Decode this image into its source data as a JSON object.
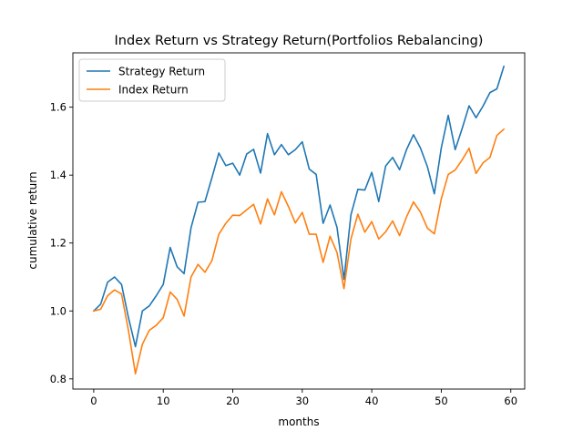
{
  "chart_data": {
    "type": "line",
    "title": "Index Return vs Strategy Return(Portfolios Rebalancing)",
    "xlabel": "months",
    "ylabel": "cumulative return",
    "xlim": [
      -3,
      62
    ],
    "ylim": [
      0.77,
      1.76
    ],
    "x_ticks": [
      0,
      10,
      20,
      30,
      40,
      50,
      60
    ],
    "y_ticks": [
      0.8,
      1.0,
      1.2,
      1.4,
      1.6
    ],
    "y_tick_labels": [
      "0.8",
      "1.0",
      "1.2",
      "1.4",
      "1.6"
    ],
    "grid": false,
    "legend_position": "top-left",
    "x": [
      0,
      1,
      2,
      3,
      4,
      5,
      6,
      7,
      8,
      9,
      10,
      11,
      12,
      13,
      14,
      15,
      16,
      17,
      18,
      19,
      20,
      21,
      22,
      23,
      24,
      25,
      26,
      27,
      28,
      29,
      30,
      31,
      32,
      33,
      34,
      35,
      36,
      37,
      38,
      39,
      40,
      41,
      42,
      43,
      44,
      45,
      46,
      47,
      48,
      49,
      50,
      51,
      52,
      53,
      54,
      55,
      56,
      57,
      58,
      59
    ],
    "series": [
      {
        "name": "Strategy Return",
        "color": "#1f77b4",
        "values": [
          1.0,
          1.02,
          1.085,
          1.1,
          1.078,
          0.98,
          0.895,
          1.0,
          1.015,
          1.045,
          1.078,
          1.187,
          1.13,
          1.11,
          1.245,
          1.32,
          1.322,
          1.392,
          1.465,
          1.428,
          1.435,
          1.4,
          1.462,
          1.476,
          1.406,
          1.522,
          1.46,
          1.49,
          1.46,
          1.475,
          1.498,
          1.418,
          1.402,
          1.258,
          1.312,
          1.246,
          1.093,
          1.283,
          1.358,
          1.356,
          1.408,
          1.322,
          1.427,
          1.452,
          1.416,
          1.475,
          1.519,
          1.48,
          1.425,
          1.345,
          1.48,
          1.576,
          1.475,
          1.537,
          1.604,
          1.569,
          1.603,
          1.643,
          1.654,
          1.72
        ]
      },
      {
        "name": "Index Return",
        "color": "#ff7f0e",
        "values": [
          1.0,
          1.005,
          1.045,
          1.062,
          1.05,
          0.942,
          0.815,
          0.902,
          0.943,
          0.958,
          0.98,
          1.056,
          1.034,
          0.985,
          1.1,
          1.137,
          1.114,
          1.148,
          1.226,
          1.258,
          1.282,
          1.281,
          1.298,
          1.314,
          1.256,
          1.33,
          1.283,
          1.351,
          1.308,
          1.259,
          1.29,
          1.226,
          1.226,
          1.143,
          1.22,
          1.172,
          1.066,
          1.212,
          1.285,
          1.232,
          1.263,
          1.212,
          1.233,
          1.265,
          1.222,
          1.277,
          1.321,
          1.291,
          1.244,
          1.227,
          1.33,
          1.402,
          1.415,
          1.445,
          1.479,
          1.405,
          1.436,
          1.452,
          1.517,
          1.535
        ]
      }
    ]
  }
}
